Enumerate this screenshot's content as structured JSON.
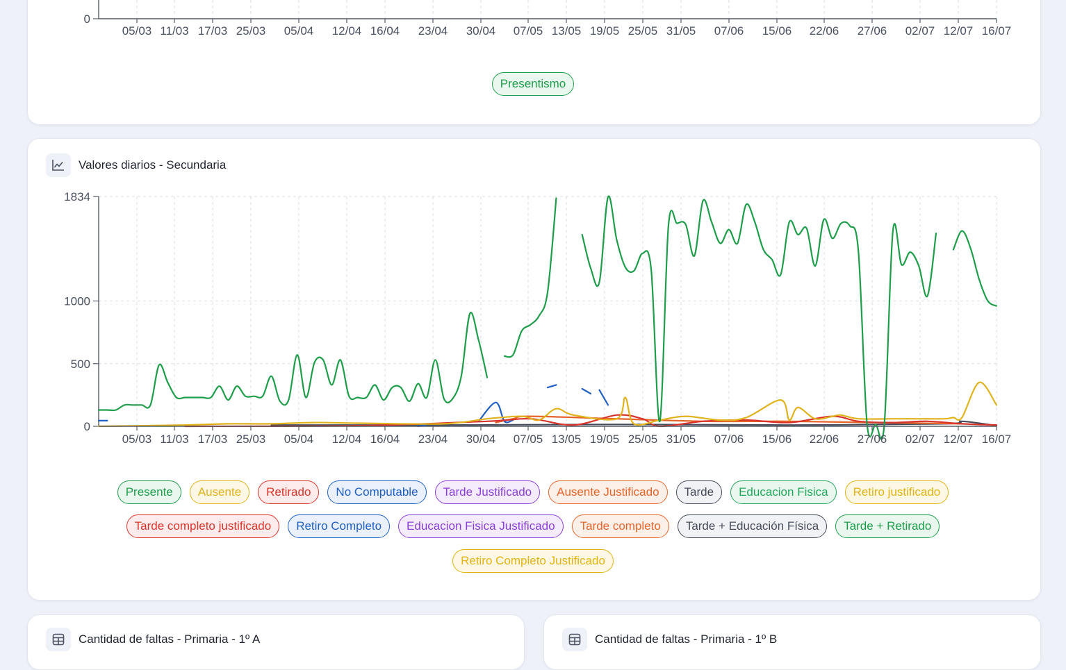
{
  "top_card": {
    "x_ticks": [
      "05/03",
      "11/03",
      "17/03",
      "25/03",
      "05/04",
      "12/04",
      "16/04",
      "23/04",
      "30/04",
      "07/05",
      "13/05",
      "19/05",
      "25/05",
      "31/05",
      "07/06",
      "15/06",
      "22/06",
      "27/06",
      "02/07",
      "12/07",
      "16/07"
    ],
    "y_zero_label": "0",
    "legend": [
      {
        "label": "Presentismo",
        "color": "#1e9e4a"
      }
    ]
  },
  "secondary_card": {
    "title": "Valores diarios - Secundaria",
    "icon": "line-chart-icon"
  },
  "chart_data": {
    "type": "line",
    "title": "Valores diarios - Secundaria",
    "xlabel": "",
    "ylabel": "",
    "ylim": [
      0,
      1834
    ],
    "y_ticks": [
      0,
      500,
      1000,
      1834
    ],
    "grid": true,
    "legend_placement": "bottom",
    "x_ticks": [
      "05/03",
      "11/03",
      "17/03",
      "25/03",
      "05/04",
      "12/04",
      "16/04",
      "23/04",
      "30/04",
      "07/05",
      "13/05",
      "19/05",
      "25/05",
      "31/05",
      "07/06",
      "15/06",
      "22/06",
      "27/06",
      "02/07",
      "12/07",
      "16/07"
    ],
    "x_start": "2024-03-01",
    "x_end": "2024-07-16",
    "series": [
      {
        "name": "Presente",
        "color": "#1e9e4a",
        "data": [
          [
            0,
            130
          ],
          [
            1,
            130
          ],
          [
            2,
            130
          ],
          [
            3,
            170
          ],
          [
            4,
            170
          ],
          [
            5,
            170
          ],
          [
            6,
            170
          ],
          [
            7,
            490
          ],
          [
            8,
            350
          ],
          [
            9,
            230
          ],
          [
            10,
            230
          ],
          [
            11,
            230
          ],
          [
            12,
            230
          ],
          [
            13,
            230
          ],
          [
            14,
            320
          ],
          [
            15,
            210
          ],
          [
            16,
            320
          ],
          [
            17,
            240
          ],
          [
            18,
            240
          ],
          [
            19,
            240
          ],
          [
            20,
            400
          ],
          [
            21,
            200
          ],
          [
            22,
            210
          ],
          [
            23,
            570
          ],
          [
            24,
            230
          ],
          [
            25,
            510
          ],
          [
            26,
            530
          ],
          [
            27,
            330
          ],
          [
            28,
            530
          ],
          [
            29,
            240
          ],
          [
            30,
            230
          ],
          [
            31,
            230
          ],
          [
            32,
            330
          ],
          [
            33,
            210
          ],
          [
            34,
            310
          ],
          [
            35,
            310
          ],
          [
            36,
            200
          ],
          [
            37,
            340
          ],
          [
            38,
            230
          ],
          [
            39,
            530
          ],
          [
            40,
            220
          ],
          [
            41,
            220
          ],
          [
            42,
            400
          ],
          [
            43,
            900
          ],
          [
            44,
            690
          ],
          [
            45,
            390
          ],
          [
            46,
            null
          ],
          [
            47,
            560
          ],
          [
            48,
            570
          ],
          [
            49,
            760
          ],
          [
            50,
            810
          ],
          [
            51,
            880
          ],
          [
            52,
            1070
          ],
          [
            53,
            1820
          ],
          [
            54,
            null
          ],
          [
            55,
            null
          ],
          [
            56,
            1530
          ],
          [
            57,
            1260
          ],
          [
            58,
            1150
          ],
          [
            59,
            1830
          ],
          [
            60,
            1490
          ],
          [
            61,
            1270
          ],
          [
            62,
            1240
          ],
          [
            63,
            1380
          ],
          [
            64,
            1250
          ],
          [
            65,
            40
          ],
          [
            66,
            1600
          ],
          [
            67,
            1620
          ],
          [
            68,
            1610
          ],
          [
            69,
            1360
          ],
          [
            70,
            1800
          ],
          [
            71,
            1630
          ],
          [
            72,
            1460
          ],
          [
            73,
            1570
          ],
          [
            74,
            1460
          ],
          [
            75,
            1770
          ],
          [
            76,
            1630
          ],
          [
            77,
            1410
          ],
          [
            78,
            1330
          ],
          [
            79,
            1210
          ],
          [
            80,
            1630
          ],
          [
            81,
            1530
          ],
          [
            82,
            1580
          ],
          [
            83,
            1280
          ],
          [
            84,
            1650
          ],
          [
            85,
            1500
          ],
          [
            86,
            1620
          ],
          [
            87,
            1600
          ],
          [
            88,
            1400
          ],
          [
            89,
            20
          ],
          [
            90,
            15
          ],
          [
            91,
            10
          ],
          [
            92,
            1560
          ],
          [
            93,
            1290
          ],
          [
            94,
            1390
          ],
          [
            95,
            1280
          ],
          [
            96,
            1040
          ],
          [
            97,
            1540
          ],
          [
            98,
            null
          ],
          [
            99,
            1410
          ],
          [
            100,
            1560
          ],
          [
            101,
            1420
          ],
          [
            102,
            1170
          ],
          [
            103,
            1000
          ],
          [
            104,
            960
          ]
        ]
      },
      {
        "name": "Ausente",
        "color": "#e0b21c",
        "data": [
          [
            0,
            0
          ],
          [
            10,
            10
          ],
          [
            15,
            20
          ],
          [
            20,
            20
          ],
          [
            25,
            30
          ],
          [
            30,
            25
          ],
          [
            40,
            20
          ],
          [
            45,
            60
          ],
          [
            49,
            80
          ],
          [
            51,
            50
          ],
          [
            53,
            140
          ],
          [
            55,
            90
          ],
          [
            60,
            60
          ],
          [
            61,
            230
          ],
          [
            62,
            20
          ],
          [
            65,
            50
          ],
          [
            68,
            80
          ],
          [
            72,
            50
          ],
          [
            75,
            70
          ],
          [
            79,
            210
          ],
          [
            80,
            50
          ],
          [
            81,
            150
          ],
          [
            83,
            60
          ],
          [
            85,
            80
          ],
          [
            86,
            90
          ],
          [
            88,
            60
          ],
          [
            92,
            60
          ],
          [
            95,
            60
          ],
          [
            98,
            60
          ],
          [
            99,
            70
          ],
          [
            100,
            70
          ],
          [
            102,
            350
          ],
          [
            104,
            170
          ]
        ]
      },
      {
        "name": "Retirado",
        "color": "#d9342b",
        "data": [
          [
            10,
            0
          ],
          [
            30,
            5
          ],
          [
            45,
            40
          ],
          [
            50,
            60
          ],
          [
            55,
            10
          ],
          [
            60,
            90
          ],
          [
            63,
            60
          ],
          [
            65,
            0
          ],
          [
            70,
            40
          ],
          [
            75,
            50
          ],
          [
            80,
            30
          ],
          [
            85,
            80
          ],
          [
            88,
            40
          ],
          [
            92,
            30
          ],
          [
            96,
            40
          ],
          [
            100,
            20
          ],
          [
            104,
            10
          ]
        ]
      },
      {
        "name": "No Computable",
        "color": "#1f5fc4",
        "data": [
          [
            0,
            45
          ],
          [
            1,
            45
          ],
          [
            null,
            null
          ],
          [
            37,
            0
          ],
          [
            38,
            15
          ],
          [
            null,
            null
          ],
          [
            44,
            40
          ],
          [
            46,
            190
          ],
          [
            47,
            40
          ],
          [
            48,
            50
          ],
          [
            null,
            null
          ],
          [
            52,
            310
          ],
          [
            53,
            330
          ],
          [
            null,
            null
          ],
          [
            56,
            300
          ],
          [
            57,
            260
          ],
          [
            null,
            null
          ],
          [
            58,
            290
          ],
          [
            59,
            170
          ]
        ]
      },
      {
        "name": "Tarde Justificado",
        "color": "#8a3fd9",
        "data": []
      },
      {
        "name": "Ausente Justificado",
        "color": "#e6652a",
        "data": [
          [
            46,
            30
          ],
          [
            48,
            60
          ],
          [
            50,
            80
          ],
          [
            60,
            60
          ],
          [
            70,
            40
          ],
          [
            80,
            40
          ],
          [
            90,
            30
          ],
          [
            100,
            20
          ]
        ]
      },
      {
        "name": "Tarde",
        "color": "#454b5a",
        "data": [
          [
            20,
            10
          ],
          [
            40,
            10
          ],
          [
            60,
            15
          ],
          [
            80,
            10
          ],
          [
            98,
            20
          ],
          [
            100,
            40
          ],
          [
            104,
            5
          ]
        ]
      },
      {
        "name": "Educacion Fisica",
        "color": "#22a85c",
        "data": []
      },
      {
        "name": "Retiro justificado",
        "color": "#e3b312",
        "data": []
      },
      {
        "name": "Tarde completo justificado",
        "color": "#d9342b",
        "data": []
      },
      {
        "name": "Retiro Completo",
        "color": "#1f5fc4",
        "data": []
      },
      {
        "name": "Educacion Fisica Justificado",
        "color": "#8a3fd9",
        "data": []
      },
      {
        "name": "Tarde completo",
        "color": "#e6652a",
        "data": []
      },
      {
        "name": "Tarde + Educación Física",
        "color": "#454b5a",
        "data": []
      },
      {
        "name": "Tarde + Retirado",
        "color": "#1e9e4a",
        "data": []
      },
      {
        "name": "Retiro Completo Justificado",
        "color": "#e3b312",
        "data": []
      }
    ]
  },
  "legend_rows": [
    [
      {
        "label": "Presente",
        "color": "#1e9e4a",
        "bg": "#eaf7ef"
      },
      {
        "label": "Ausente",
        "color": "#e0b21c",
        "bg": "#fdf8e6"
      },
      {
        "label": "Retirado",
        "color": "#d9342b",
        "bg": "#fdeceb"
      },
      {
        "label": "No Computable",
        "color": "#1f5fc4",
        "bg": "#eaf1fc"
      },
      {
        "label": "Tarde Justificado",
        "color": "#8a3fd9",
        "bg": "#f4ecfc"
      },
      {
        "label": "Ausente Justificado",
        "color": "#e6652a",
        "bg": "#fdf0e9"
      },
      {
        "label": "Tarde",
        "color": "#454b5a",
        "bg": "#f1f2f5"
      },
      {
        "label": "Educacion Fisica",
        "color": "#22a85c",
        "bg": "#eaf7ef"
      },
      {
        "label": "Retiro justificado",
        "color": "#e3b312",
        "bg": "#fdf8e6"
      }
    ],
    [
      {
        "label": "Tarde completo justificado",
        "color": "#d9342b",
        "bg": "#fdeceb"
      },
      {
        "label": "Retiro Completo",
        "color": "#1f5fc4",
        "bg": "#eaf1fc"
      },
      {
        "label": "Educacion Fisica Justificado",
        "color": "#8a3fd9",
        "bg": "#f4ecfc"
      },
      {
        "label": "Tarde completo",
        "color": "#e6652a",
        "bg": "#fdf0e9"
      },
      {
        "label": "Tarde + Educación Física",
        "color": "#454b5a",
        "bg": "#f1f2f5"
      },
      {
        "label": "Tarde + Retirado",
        "color": "#1e9e4a",
        "bg": "#eaf7ef"
      }
    ],
    [
      {
        "label": "Retiro Completo Justificado",
        "color": "#e3b312",
        "bg": "#fdf8e6"
      }
    ]
  ],
  "bottom_cards": [
    {
      "title": "Cantidad de faltas - Primaria - 1º A",
      "icon": "table-icon"
    },
    {
      "title": "Cantidad de faltas - Primaria - 1º B",
      "icon": "table-icon"
    }
  ]
}
